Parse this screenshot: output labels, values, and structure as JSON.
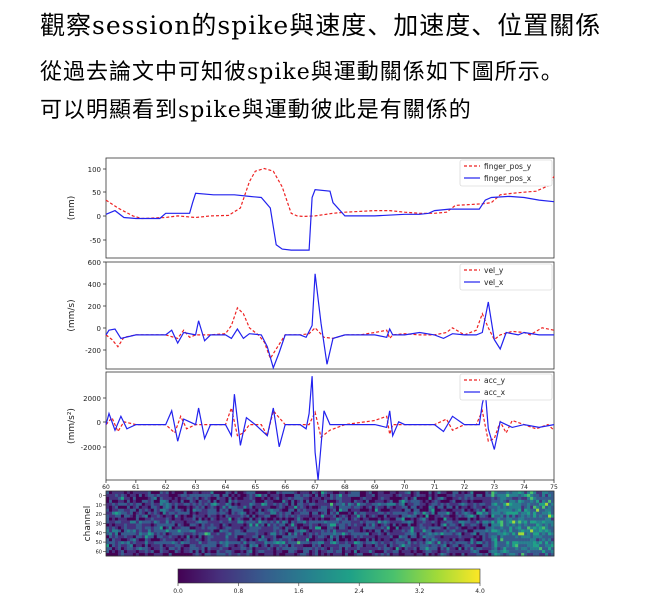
{
  "document": {
    "title": "觀察session的spike與速度、加速度、位置關係",
    "line1": "從過去論文中可知彼spike與運動關係如下圖所示。",
    "line2": "可以明顯看到spike與運動彼此是有關係的"
  },
  "chart_data": [
    {
      "type": "line",
      "ylabel": "(mm)",
      "ylim": [
        -65,
        125
      ],
      "yticks": [
        "100",
        "50",
        "0",
        "-50"
      ],
      "legend": "top-right",
      "series": [
        {
          "name": "finger_pos_y",
          "color": "#ee2222",
          "dashed": true,
          "x": [
            60,
            60.4,
            60.9,
            61.2,
            62,
            62.4,
            63,
            63.5,
            64.1,
            64.5,
            64.8,
            65,
            65.3,
            65.6,
            65.9,
            66.2,
            66.4,
            66.6,
            67,
            67.6,
            68,
            69,
            69.5,
            70,
            70.5,
            71,
            71.4,
            71.7,
            72.6,
            72.9,
            73.2,
            73.6,
            74,
            74.4,
            74.8,
            75
          ],
          "y": [
            45,
            30,
            15,
            10,
            12,
            15,
            12,
            15,
            16,
            30,
            80,
            100,
            105,
            100,
            70,
            20,
            15,
            14,
            15,
            20,
            22,
            25,
            25,
            22,
            20,
            20,
            22,
            35,
            38,
            40,
            55,
            58,
            60,
            62,
            72,
            90
          ]
        },
        {
          "name": "finger_pos_x",
          "color": "#2222ee",
          "dashed": false,
          "x": [
            60,
            60.3,
            60.6,
            61,
            61.8,
            62,
            62.8,
            62.9,
            63,
            63.6,
            64,
            64.3,
            64.8,
            65.2,
            65.5,
            65.7,
            65.9,
            66.2,
            66.8,
            66.9,
            67,
            67.5,
            67.6,
            68,
            69,
            70,
            70.5,
            70.8,
            71,
            71.5,
            72,
            72.5,
            72.7,
            72.9,
            73.5,
            74,
            74.5,
            75
          ],
          "y": [
            18,
            25,
            12,
            10,
            10,
            20,
            20,
            40,
            58,
            55,
            55,
            55,
            52,
            50,
            30,
            -40,
            -48,
            -50,
            -50,
            50,
            65,
            62,
            40,
            15,
            15,
            18,
            18,
            20,
            25,
            28,
            28,
            28,
            45,
            50,
            52,
            50,
            45,
            42
          ]
        }
      ]
    },
    {
      "type": "line",
      "ylabel": "(mm/s)",
      "ylim": [
        -290,
        620
      ],
      "yticks": [
        "600",
        "400",
        "200",
        "0",
        "-200"
      ],
      "legend": "top-right",
      "series": [
        {
          "name": "vel_y",
          "color": "#ee2222",
          "dashed": true,
          "x": [
            60,
            60.2,
            60.4,
            60.6,
            61,
            62,
            62.4,
            62.6,
            62.8,
            63,
            63.5,
            64,
            64.2,
            64.4,
            64.6,
            64.8,
            65.1,
            65.3,
            65.5,
            65.7,
            66,
            66.5,
            66.8,
            67,
            67.3,
            67.6,
            68,
            68.5,
            69,
            69.4,
            69.5,
            69.6,
            70,
            70.5,
            71,
            71.4,
            71.6,
            72,
            72.4,
            72.6,
            72.8,
            73,
            73.2,
            73.6,
            74,
            74.2,
            74.6,
            75
          ],
          "y": [
            0,
            -40,
            -100,
            -20,
            0,
            0,
            -30,
            40,
            -20,
            0,
            0,
            10,
            80,
            230,
            180,
            60,
            0,
            -60,
            -200,
            -120,
            0,
            0,
            10,
            60,
            -20,
            -30,
            0,
            0,
            20,
            40,
            -30,
            0,
            10,
            0,
            0,
            20,
            60,
            0,
            40,
            180,
            60,
            -40,
            0,
            30,
            20,
            0,
            60,
            40
          ]
        },
        {
          "name": "vel_x",
          "color": "#2222ee",
          "dashed": false,
          "x": [
            60,
            60.1,
            60.3,
            60.5,
            61,
            62,
            62.2,
            62.4,
            62.6,
            63,
            63.1,
            63.3,
            63.5,
            64,
            64.2,
            64.4,
            64.6,
            64.8,
            65.2,
            65.4,
            65.6,
            65.8,
            66,
            66.5,
            66.7,
            66.9,
            67,
            67.2,
            67.4,
            67.6,
            68,
            68.5,
            69,
            69.4,
            69.5,
            69.6,
            70,
            70.5,
            71,
            71.3,
            71.6,
            72,
            72.4,
            72.6,
            72.8,
            73,
            73.2,
            73.4,
            73.8,
            74,
            74.5,
            75
          ],
          "y": [
            0,
            40,
            50,
            -30,
            0,
            0,
            40,
            -70,
            20,
            0,
            120,
            -50,
            0,
            0,
            -30,
            50,
            -30,
            10,
            0,
            -100,
            -280,
            -150,
            0,
            0,
            -20,
            80,
            520,
            100,
            -250,
            -30,
            0,
            0,
            0,
            -20,
            50,
            0,
            0,
            20,
            0,
            -30,
            10,
            0,
            0,
            20,
            280,
            -40,
            -120,
            20,
            0,
            20,
            0,
            0
          ]
        }
      ]
    },
    {
      "type": "line",
      "ylabel": "(mm/s²)",
      "ylim": [
        -4000,
        3800
      ],
      "yticks": [
        "2000",
        "0",
        "-2000"
      ],
      "legend": "top-right",
      "series": [
        {
          "name": "acc_y",
          "color": "#ee2222",
          "dashed": true,
          "x": [
            60,
            60.2,
            60.4,
            60.6,
            61,
            62,
            62.3,
            62.5,
            62.7,
            63,
            63.5,
            64,
            64.2,
            64.4,
            64.6,
            64.8,
            65.2,
            65.4,
            65.6,
            65.8,
            66,
            66.5,
            66.8,
            67,
            67.2,
            67.5,
            68,
            69,
            69.4,
            69.5,
            69.6,
            70,
            70.5,
            71,
            71.4,
            71.6,
            72,
            72.4,
            72.6,
            72.8,
            73,
            73.2,
            73.4,
            73.6,
            74,
            74.4,
            74.8,
            75
          ],
          "y": [
            0,
            500,
            -500,
            200,
            0,
            0,
            -600,
            600,
            -300,
            0,
            0,
            0,
            1200,
            -800,
            -600,
            0,
            0,
            -800,
            1000,
            500,
            0,
            0,
            0,
            900,
            -900,
            -400,
            0,
            300,
            600,
            -700,
            0,
            0,
            0,
            0,
            400,
            -400,
            0,
            0,
            1000,
            -1200,
            -1000,
            200,
            -600,
            300,
            0,
            -300,
            0,
            -400
          ]
        },
        {
          "name": "acc_x",
          "color": "#2222ee",
          "dashed": false,
          "x": [
            60,
            60.1,
            60.3,
            60.5,
            60.7,
            61,
            62,
            62.2,
            62.4,
            62.6,
            63,
            63.1,
            63.3,
            63.5,
            64,
            64.2,
            64.3,
            64.5,
            64.7,
            65,
            65.4,
            65.6,
            65.8,
            66,
            66.5,
            66.7,
            66.8,
            66.9,
            67,
            67.1,
            67.3,
            67.5,
            68,
            69,
            69.4,
            69.5,
            69.6,
            69.8,
            70,
            70.5,
            71,
            71.3,
            71.6,
            72,
            72.5,
            72.6,
            72.7,
            72.8,
            73,
            73.2,
            73.6,
            74,
            74.5,
            75
          ],
          "y": [
            0,
            800,
            -400,
            600,
            -300,
            0,
            0,
            1000,
            -1200,
            400,
            0,
            1200,
            -1000,
            0,
            0,
            -800,
            2200,
            -1500,
            500,
            0,
            -800,
            1200,
            -1600,
            0,
            0,
            -300,
            800,
            3500,
            -2000,
            -4000,
            1000,
            0,
            0,
            0,
            -200,
            1000,
            -800,
            200,
            0,
            0,
            0,
            -500,
            600,
            0,
            0,
            1500,
            2400,
            -300,
            -1800,
            200,
            -200,
            0,
            -200,
            0
          ]
        }
      ]
    },
    {
      "type": "heatmap",
      "ylabel": "channel",
      "yticks": [
        "0",
        "10",
        "20",
        "30",
        "40",
        "50",
        "60"
      ],
      "xlim": [
        60,
        75
      ],
      "xticks": [
        "60",
        "61",
        "62",
        "63",
        "64",
        "65",
        "66",
        "67",
        "68",
        "69",
        "70",
        "71",
        "72",
        "73",
        "74",
        "75"
      ],
      "colorbar": {
        "ticks": [
          "0.0",
          "0.8",
          "1.6",
          "2.4",
          "3.2",
          "4.0"
        ],
        "range": [
          0,
          4
        ],
        "colormap": "viridis"
      }
    }
  ]
}
